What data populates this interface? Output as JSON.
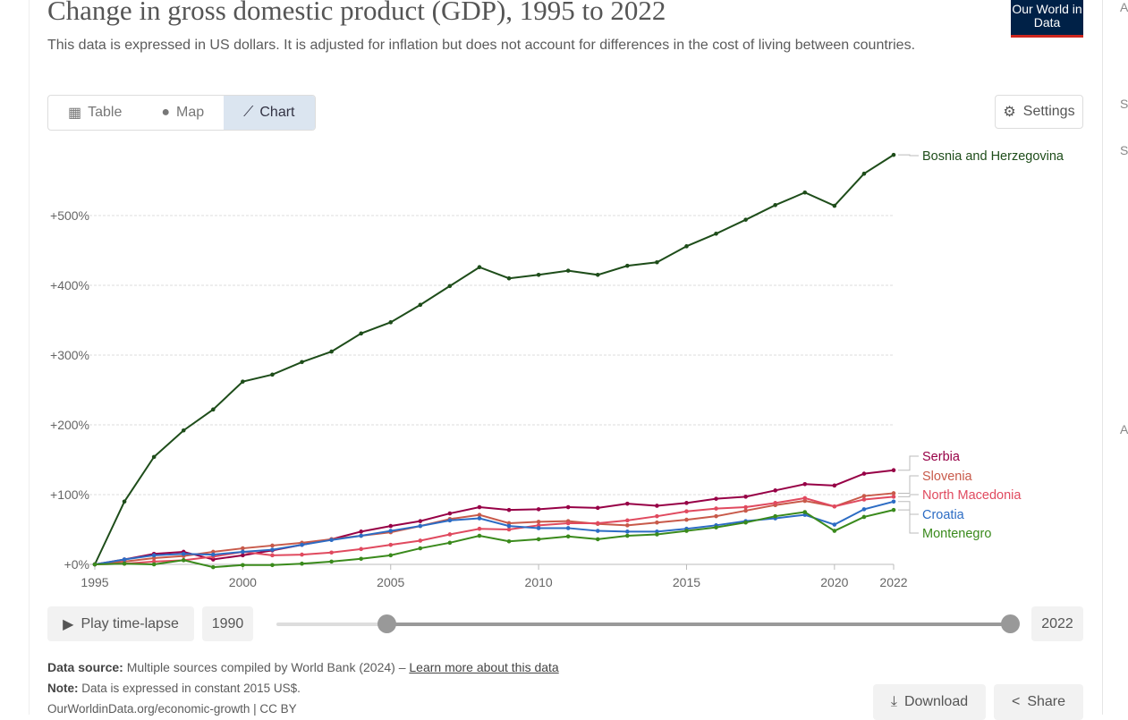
{
  "header": {
    "title": "Change in gross domestic product (GDP), 1995 to 2022",
    "subtitle": "This data is expressed in US dollars. It is adjusted for inflation but does not account for differences in the cost of living between countries.",
    "logo": "Our World in Data"
  },
  "tabs": [
    {
      "label": "Table",
      "icon": "table-icon"
    },
    {
      "label": "Map",
      "icon": "globe-icon"
    },
    {
      "label": "Chart",
      "icon": "line-chart-icon",
      "active": true
    }
  ],
  "settings_label": "Settings",
  "timeline": {
    "play_label": "Play time-lapse",
    "start": "1990",
    "end": "2022",
    "range_start_fraction": 0.15,
    "range_end_fraction": 1.0
  },
  "footer": {
    "source_label": "Data source:",
    "source_text": "Multiple sources compiled by World Bank (2024) – ",
    "source_link": "Learn more about this data",
    "note_label": "Note:",
    "note_text": "Data is expressed in constant 2015 US$.",
    "url": "OurWorldinData.org/economic-growth | CC BY",
    "download": "Download",
    "share": "Share"
  },
  "side_letters": [
    "A",
    "S",
    "S",
    "A"
  ],
  "chart_data": {
    "type": "line",
    "title": "Change in gross domestic product (GDP), 1995 to 2022",
    "x": [
      1995,
      1996,
      1997,
      1998,
      1999,
      2000,
      2001,
      2002,
      2003,
      2004,
      2005,
      2006,
      2007,
      2008,
      2009,
      2010,
      2011,
      2012,
      2013,
      2014,
      2015,
      2016,
      2017,
      2018,
      2019,
      2020,
      2021,
      2022
    ],
    "xticks": [
      "1995",
      "2000",
      "2005",
      "2010",
      "2015",
      "2020",
      "2022"
    ],
    "yticks": [
      "+0%",
      "+100%",
      "+200%",
      "+300%",
      "+400%",
      "+500%"
    ],
    "ylim": [
      0,
      600
    ],
    "unit": "%",
    "grid": true,
    "legend": "right-end labels",
    "series": [
      {
        "name": "Bosnia and Herzegovina",
        "color": "#1e4d1a",
        "values": [
          0,
          90,
          154,
          192,
          222,
          262,
          272,
          290,
          305,
          331,
          347,
          372,
          399,
          426,
          410,
          415,
          421,
          415,
          428,
          433,
          456,
          474,
          494,
          515,
          533,
          514,
          560,
          587
        ]
      },
      {
        "name": "Serbia",
        "color": "#970046",
        "values": [
          0,
          7,
          15,
          18,
          7,
          13,
          20,
          28,
          36,
          47,
          55,
          62,
          73,
          82,
          78,
          79,
          82,
          81,
          87,
          84,
          88,
          94,
          97,
          106,
          115,
          113,
          130,
          135
        ]
      },
      {
        "name": "Slovenia",
        "color": "#c85a4a",
        "values": [
          0,
          4,
          9,
          12,
          18,
          23,
          27,
          31,
          36,
          41,
          46,
          55,
          65,
          71,
          59,
          61,
          62,
          58,
          56,
          60,
          64,
          69,
          77,
          85,
          91,
          83,
          98,
          102
        ]
      },
      {
        "name": "North Macedonia",
        "color": "#e04a5f",
        "values": [
          0,
          1,
          4,
          6,
          11,
          18,
          13,
          14,
          17,
          22,
          28,
          34,
          43,
          51,
          50,
          56,
          59,
          59,
          63,
          69,
          76,
          80,
          82,
          88,
          95,
          83,
          93,
          97
        ]
      },
      {
        "name": "Croatia",
        "color": "#2c6cc4",
        "values": [
          0,
          7,
          13,
          15,
          14,
          18,
          21,
          28,
          35,
          41,
          48,
          55,
          63,
          66,
          55,
          52,
          52,
          48,
          47,
          47,
          51,
          56,
          62,
          66,
          71,
          57,
          79,
          90
        ]
      },
      {
        "name": "Montenegro",
        "color": "#3a8a1c",
        "values": [
          0,
          1,
          0,
          6,
          -4,
          -1,
          -1,
          1,
          4,
          8,
          13,
          23,
          31,
          41,
          33,
          36,
          40,
          36,
          41,
          43,
          48,
          53,
          60,
          69,
          75,
          48,
          68,
          78
        ]
      }
    ]
  }
}
